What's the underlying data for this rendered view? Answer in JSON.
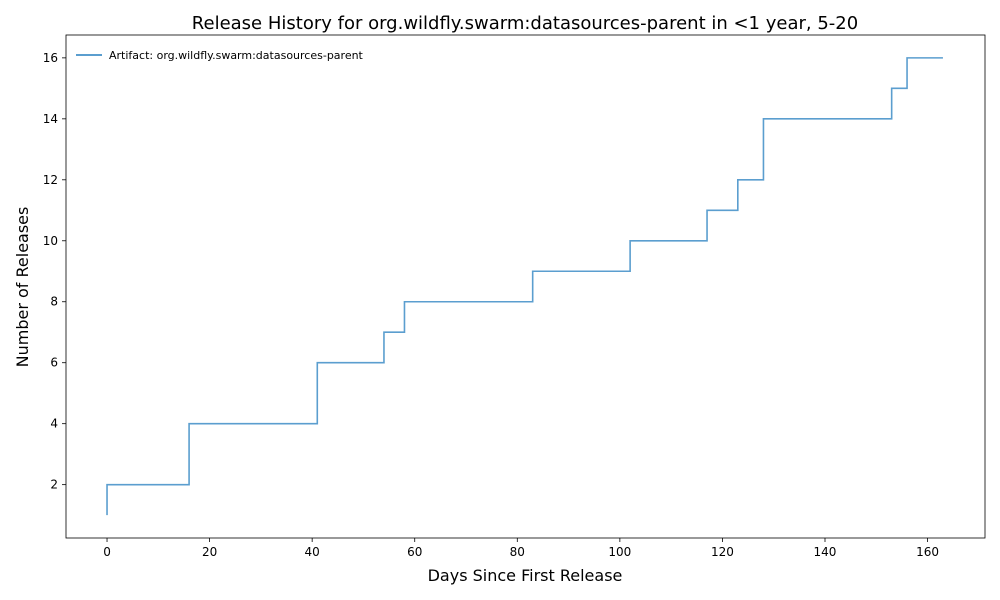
{
  "chart_data": {
    "type": "line",
    "step": "post",
    "title": "Release History for org.wildfly.swarm:datasources-parent in <1 year, 5-20",
    "xlabel": "Days Since First Release",
    "ylabel": "Number of Releases",
    "xlim": [
      -8,
      171.2
    ],
    "ylim": [
      0.25,
      16.75
    ],
    "xticks": [
      0,
      20,
      40,
      60,
      80,
      100,
      120,
      140,
      160
    ],
    "yticks": [
      2,
      4,
      6,
      8,
      10,
      12,
      14,
      16
    ],
    "grid": false,
    "legend": "top-left",
    "series": [
      {
        "name": "Artifact: org.wildfly.swarm:datasources-parent",
        "color": "#5b9ecf",
        "x": [
          0,
          0,
          16,
          41,
          54,
          58,
          83,
          102,
          117,
          123,
          128,
          153,
          156,
          163
        ],
        "y": [
          1,
          2,
          4,
          6,
          7,
          8,
          9,
          10,
          11,
          12,
          14,
          15,
          16,
          16
        ]
      }
    ]
  }
}
